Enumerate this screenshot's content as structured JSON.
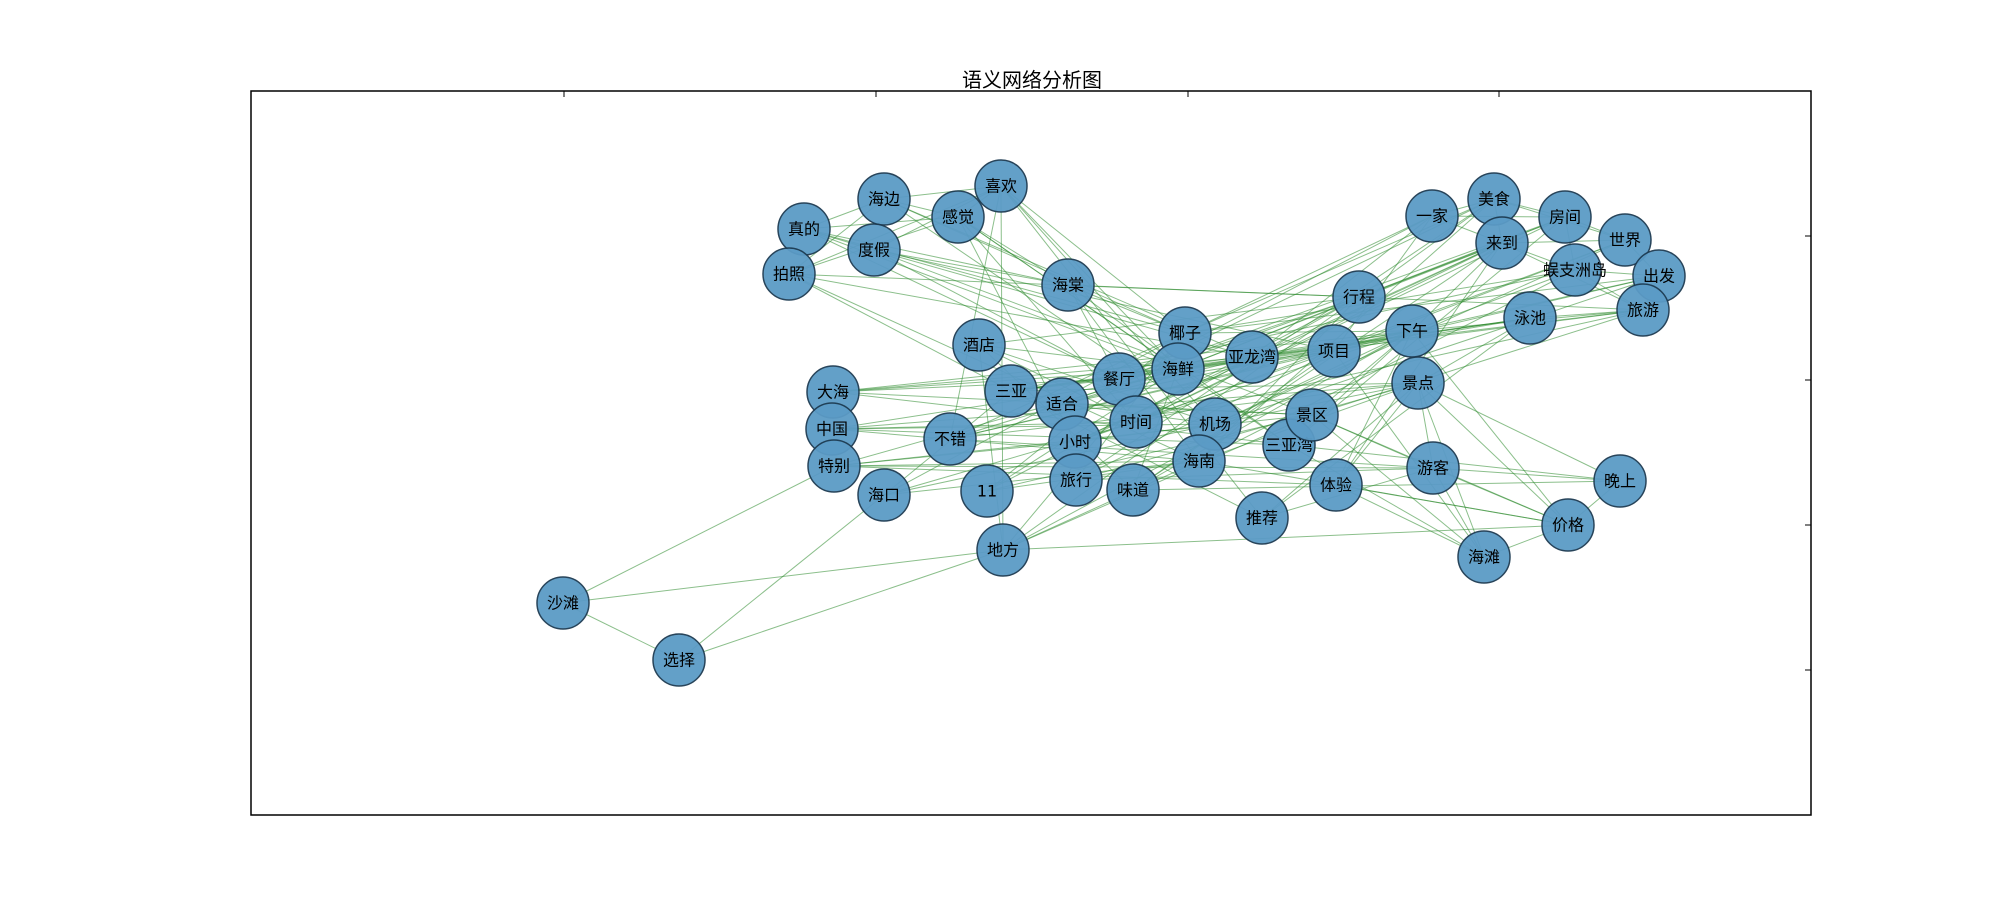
{
  "title": "语义网络分析图",
  "colors": {
    "node_fill": "#5b9bc6",
    "node_stroke": "#1d3b52",
    "edge": "#2e8b2e",
    "frame": "#000000"
  },
  "nodes": [
    {
      "id": "shatan",
      "label": "沙滩"
    },
    {
      "id": "xuanze",
      "label": "选择"
    },
    {
      "id": "zhende",
      "label": "真的"
    },
    {
      "id": "paizhao",
      "label": "拍照"
    },
    {
      "id": "haibian",
      "label": "海边"
    },
    {
      "id": "dujia",
      "label": "度假"
    },
    {
      "id": "ganjue",
      "label": "感觉"
    },
    {
      "id": "xihuan",
      "label": "喜欢"
    },
    {
      "id": "haitang",
      "label": "海棠"
    },
    {
      "id": "jiudian",
      "label": "酒店"
    },
    {
      "id": "dahai",
      "label": "大海"
    },
    {
      "id": "zhongguo",
      "label": "中国"
    },
    {
      "id": "tebie",
      "label": "特别"
    },
    {
      "id": "haikou",
      "label": "海口"
    },
    {
      "id": "sanya",
      "label": "三亚"
    },
    {
      "id": "shihe",
      "label": "适合"
    },
    {
      "id": "bucuo",
      "label": "不错"
    },
    {
      "id": "n11",
      "label": "11"
    },
    {
      "id": "difang",
      "label": "地方"
    },
    {
      "id": "xiaoshi",
      "label": "小时"
    },
    {
      "id": "lvxing",
      "label": "旅行"
    },
    {
      "id": "weidao",
      "label": "味道"
    },
    {
      "id": "canting",
      "label": "餐厅"
    },
    {
      "id": "shijian",
      "label": "时间"
    },
    {
      "id": "yezi",
      "label": "椰子"
    },
    {
      "id": "haixian",
      "label": "海鲜"
    },
    {
      "id": "jichang",
      "label": "机场"
    },
    {
      "id": "hainan",
      "label": "海南"
    },
    {
      "id": "yalongwan",
      "label": "亚龙湾"
    },
    {
      "id": "sanyawan",
      "label": "三亚湾"
    },
    {
      "id": "tuijian",
      "label": "推荐"
    },
    {
      "id": "jingqu",
      "label": "景区"
    },
    {
      "id": "tiyan",
      "label": "体验"
    },
    {
      "id": "xiangmu",
      "label": "项目"
    },
    {
      "id": "xingcheng",
      "label": "行程"
    },
    {
      "id": "xiawu",
      "label": "下午"
    },
    {
      "id": "jingdian",
      "label": "景点"
    },
    {
      "id": "youke",
      "label": "游客"
    },
    {
      "id": "yijia",
      "label": "一家"
    },
    {
      "id": "meishi",
      "label": "美食"
    },
    {
      "id": "laidao",
      "label": "来到"
    },
    {
      "id": "fangjian",
      "label": "房间"
    },
    {
      "id": "shijie",
      "label": "世界"
    },
    {
      "id": "wuzhizhoudao",
      "label": "蜈支洲岛"
    },
    {
      "id": "chufa",
      "label": "出发"
    },
    {
      "id": "lvyou",
      "label": "旅游"
    },
    {
      "id": "yongchi",
      "label": "泳池"
    },
    {
      "id": "wanshang",
      "label": "晚上"
    },
    {
      "id": "jiage",
      "label": "价格"
    },
    {
      "id": "haitan",
      "label": "海滩"
    }
  ],
  "edges": [
    [
      "shatan",
      "xuanze"
    ],
    [
      "shatan",
      "tebie"
    ],
    [
      "shatan",
      "difang"
    ],
    [
      "xuanze",
      "haikou"
    ],
    [
      "xuanze",
      "difang"
    ],
    [
      "zhende",
      "haibian"
    ],
    [
      "zhende",
      "ganjue"
    ],
    [
      "zhende",
      "dujia"
    ],
    [
      "zhende",
      "haitang"
    ],
    [
      "zhende",
      "yezi"
    ],
    [
      "zhende",
      "haixian"
    ],
    [
      "zhende",
      "canting"
    ],
    [
      "paizhao",
      "haibian"
    ],
    [
      "paizhao",
      "ganjue"
    ],
    [
      "paizhao",
      "xihuan"
    ],
    [
      "paizhao",
      "yalongwan"
    ],
    [
      "paizhao",
      "xingcheng"
    ],
    [
      "paizhao",
      "hainan"
    ],
    [
      "paizhao",
      "sanya"
    ],
    [
      "haibian",
      "xihuan"
    ],
    [
      "haibian",
      "ganjue"
    ],
    [
      "haibian",
      "yezi"
    ],
    [
      "haibian",
      "yalongwan"
    ],
    [
      "haibian",
      "jichang"
    ],
    [
      "dujia",
      "xihuan"
    ],
    [
      "dujia",
      "haitang"
    ],
    [
      "dujia",
      "yalongwan"
    ],
    [
      "dujia",
      "canting"
    ],
    [
      "dujia",
      "xiangmu"
    ],
    [
      "dujia",
      "jingqu"
    ],
    [
      "ganjue",
      "xihuan"
    ],
    [
      "ganjue",
      "haitang"
    ],
    [
      "ganjue",
      "haixian"
    ],
    [
      "ganjue",
      "shijian"
    ],
    [
      "ganjue",
      "sanyawan"
    ],
    [
      "ganjue",
      "xiaoshi"
    ],
    [
      "xihuan",
      "yezi"
    ],
    [
      "xihuan",
      "haixian"
    ],
    [
      "xihuan",
      "jichang"
    ],
    [
      "xihuan",
      "tuijian"
    ],
    [
      "xihuan",
      "difang"
    ],
    [
      "xihuan",
      "bucuo"
    ],
    [
      "haitang",
      "yezi"
    ],
    [
      "haitang",
      "xingcheng"
    ],
    [
      "haitang",
      "hainan"
    ],
    [
      "haitang",
      "sanyawan"
    ],
    [
      "haitang",
      "canting"
    ],
    [
      "jiudian",
      "haixian"
    ],
    [
      "jiudian",
      "shijian"
    ],
    [
      "jiudian",
      "jichang"
    ],
    [
      "jiudian",
      "xingcheng"
    ],
    [
      "jiudian",
      "weidao"
    ],
    [
      "jiudian",
      "difang"
    ],
    [
      "dahai",
      "haixian"
    ],
    [
      "dahai",
      "jingqu"
    ],
    [
      "dahai",
      "xiawu"
    ],
    [
      "dahai",
      "sanyawan"
    ],
    [
      "dahai",
      "yalongwan"
    ],
    [
      "dahai",
      "canting"
    ],
    [
      "zhongguo",
      "jichang"
    ],
    [
      "zhongguo",
      "xiangmu"
    ],
    [
      "zhongguo",
      "jingdian"
    ],
    [
      "zhongguo",
      "hainan"
    ],
    [
      "zhongguo",
      "sanyawan"
    ],
    [
      "zhongguo",
      "shijian"
    ],
    [
      "tebie",
      "haixian"
    ],
    [
      "tebie",
      "jingqu"
    ],
    [
      "tebie",
      "youke"
    ],
    [
      "tebie",
      "tiyan"
    ],
    [
      "tebie",
      "hainan"
    ],
    [
      "tebie",
      "xiaoshi"
    ],
    [
      "haikou",
      "sanya"
    ],
    [
      "haikou",
      "yezi"
    ],
    [
      "haikou",
      "jichang"
    ],
    [
      "haikou",
      "hainan"
    ],
    [
      "haikou",
      "shijian"
    ],
    [
      "sanya",
      "haixian"
    ],
    [
      "sanya",
      "xiangmu"
    ],
    [
      "sanya",
      "xiawu"
    ],
    [
      "sanya",
      "jingdian"
    ],
    [
      "sanya",
      "yalongwan"
    ],
    [
      "sanya",
      "canting"
    ],
    [
      "sanya",
      "tuijian"
    ],
    [
      "sanya",
      "wuzhizhoudao"
    ],
    [
      "shihe",
      "yalongwan"
    ],
    [
      "shihe",
      "xingcheng"
    ],
    [
      "shihe",
      "xiawu"
    ],
    [
      "shihe",
      "jichang"
    ],
    [
      "shihe",
      "jingqu"
    ],
    [
      "bucuo",
      "haixian"
    ],
    [
      "bucuo",
      "yezi"
    ],
    [
      "bucuo",
      "xiangmu"
    ],
    [
      "bucuo",
      "xiawu"
    ],
    [
      "bucuo",
      "jingdian"
    ],
    [
      "bucuo",
      "youke"
    ],
    [
      "n11",
      "haixian"
    ],
    [
      "n11",
      "yezi"
    ],
    [
      "n11",
      "xingcheng"
    ],
    [
      "n11",
      "jingqu"
    ],
    [
      "n11",
      "hainan"
    ],
    [
      "difang",
      "yezi"
    ],
    [
      "difang",
      "jingqu"
    ],
    [
      "difang",
      "xingcheng"
    ],
    [
      "difang",
      "xiawu"
    ],
    [
      "difang",
      "hainan"
    ],
    [
      "difang",
      "jiage"
    ],
    [
      "xiaoshi",
      "yalongwan"
    ],
    [
      "xiaoshi",
      "xiangmu"
    ],
    [
      "xiaoshi",
      "xiawu"
    ],
    [
      "xiaoshi",
      "jichang"
    ],
    [
      "xiaoshi",
      "laidao"
    ],
    [
      "lvxing",
      "yezi"
    ],
    [
      "lvxing",
      "xiangmu"
    ],
    [
      "lvxing",
      "jingdian"
    ],
    [
      "lvxing",
      "youke"
    ],
    [
      "lvxing",
      "meishi"
    ],
    [
      "weidao",
      "haixian"
    ],
    [
      "weidao",
      "xiangmu"
    ],
    [
      "weidao",
      "xiawu"
    ],
    [
      "weidao",
      "wanshang"
    ],
    [
      "weidao",
      "laidao"
    ],
    [
      "canting",
      "xingcheng"
    ],
    [
      "canting",
      "yijia"
    ],
    [
      "canting",
      "meishi"
    ],
    [
      "canting",
      "fangjian"
    ],
    [
      "canting",
      "yongchi"
    ],
    [
      "shijian",
      "xingcheng"
    ],
    [
      "shijian",
      "laidao"
    ],
    [
      "shijian",
      "fangjian"
    ],
    [
      "shijian",
      "lvyou"
    ],
    [
      "shijian",
      "shijie"
    ],
    [
      "yezi",
      "xiawu"
    ],
    [
      "yezi",
      "yijia"
    ],
    [
      "yezi",
      "meishi"
    ],
    [
      "yezi",
      "wuzhizhoudao"
    ],
    [
      "yezi",
      "chufa"
    ],
    [
      "haixian",
      "xiawu"
    ],
    [
      "haixian",
      "laidao"
    ],
    [
      "haixian",
      "fangjian"
    ],
    [
      "haixian",
      "yongchi"
    ],
    [
      "haixian",
      "lvyou"
    ],
    [
      "jichang",
      "xiawu"
    ],
    [
      "jichang",
      "jingdian"
    ],
    [
      "jichang",
      "chufa"
    ],
    [
      "jichang",
      "shijie"
    ],
    [
      "hainan",
      "xingcheng"
    ],
    [
      "hainan",
      "jingdian"
    ],
    [
      "hainan",
      "meishi"
    ],
    [
      "hainan",
      "wuzhizhoudao"
    ],
    [
      "hainan",
      "jiage"
    ],
    [
      "yalongwan",
      "yijia"
    ],
    [
      "yalongwan",
      "laidao"
    ],
    [
      "yalongwan",
      "yongchi"
    ],
    [
      "yalongwan",
      "lvyou"
    ],
    [
      "sanyawan",
      "xiawu"
    ],
    [
      "sanyawan",
      "haitan"
    ],
    [
      "sanyawan",
      "wanshang"
    ],
    [
      "sanyawan",
      "fangjian"
    ],
    [
      "tuijian",
      "jingdian"
    ],
    [
      "tuijian",
      "youke"
    ],
    [
      "tuijian",
      "yongchi"
    ],
    [
      "jingqu",
      "xiawu"
    ],
    [
      "jingqu",
      "youke"
    ],
    [
      "jingqu",
      "jiage"
    ],
    [
      "jingqu",
      "haitan"
    ],
    [
      "jingqu",
      "lvyou"
    ],
    [
      "tiyan",
      "xiawu"
    ],
    [
      "tiyan",
      "jingdian"
    ],
    [
      "tiyan",
      "haitan"
    ],
    [
      "tiyan",
      "jiage"
    ],
    [
      "tiyan",
      "laidao"
    ],
    [
      "xiangmu",
      "yijia"
    ],
    [
      "xiangmu",
      "shijie"
    ],
    [
      "xiangmu",
      "yongchi"
    ],
    [
      "xiangmu",
      "chufa"
    ],
    [
      "xingcheng",
      "laidao"
    ],
    [
      "xingcheng",
      "meishi"
    ],
    [
      "xingcheng",
      "lvyou"
    ],
    [
      "xingcheng",
      "fangjian"
    ],
    [
      "xiawu",
      "laidao"
    ],
    [
      "xiawu",
      "wuzhizhoudao"
    ],
    [
      "xiawu",
      "lvyou"
    ],
    [
      "xiawu",
      "chufa"
    ],
    [
      "jingdian",
      "youke"
    ],
    [
      "jingdian",
      "jiage"
    ],
    [
      "jingdian",
      "haitan"
    ],
    [
      "jingdian",
      "wanshang"
    ],
    [
      "jingdian",
      "yongchi"
    ],
    [
      "youke",
      "wanshang"
    ],
    [
      "youke",
      "jiage"
    ],
    [
      "youke",
      "haitan"
    ],
    [
      "yijia",
      "meishi"
    ],
    [
      "yijia",
      "laidao"
    ],
    [
      "yijia",
      "fangjian"
    ],
    [
      "meishi",
      "laidao"
    ],
    [
      "meishi",
      "fangjian"
    ],
    [
      "meishi",
      "shijie"
    ],
    [
      "laidao",
      "wuzhizhoudao"
    ],
    [
      "laidao",
      "lvyou"
    ],
    [
      "laidao",
      "shijie"
    ],
    [
      "fangjian",
      "shijie"
    ],
    [
      "fangjian",
      "wuzhizhoudao"
    ],
    [
      "shijie",
      "chufa"
    ],
    [
      "wuzhizhoudao",
      "chufa"
    ],
    [
      "wuzhizhoudao",
      "lvyou"
    ],
    [
      "chufa",
      "lvyou"
    ],
    [
      "yongchi",
      "lvyou"
    ],
    [
      "wanshang",
      "jiage"
    ],
    [
      "jiage",
      "haitan"
    ],
    [
      "xiawu",
      "jiage"
    ],
    [
      "xiangmu",
      "haitan"
    ]
  ]
}
